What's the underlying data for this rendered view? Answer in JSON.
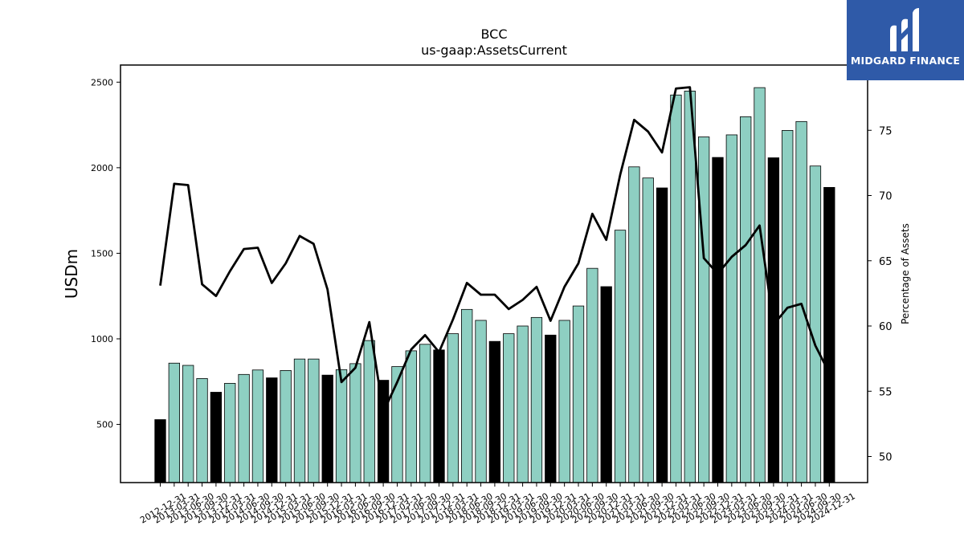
{
  "brand": {
    "name": "MIDGARD FINANCE",
    "color": "#2f5aa8"
  },
  "chart_data": {
    "type": "bar",
    "title": "BCC",
    "subtitle": "us-gaap:AssetsCurrent",
    "ylabel": "USDm",
    "y2label": "Percentage of Assets",
    "ylim": [
      160,
      2600
    ],
    "y2lim": [
      48,
      80
    ],
    "yticks": [
      500,
      1000,
      1500,
      2000,
      2500
    ],
    "y2ticks": [
      50,
      55,
      60,
      65,
      70,
      75
    ],
    "colors": {
      "quarter": "#8ecfc2",
      "year_end": "#000000",
      "line": "#000000"
    },
    "categories": [
      "2012-12-31",
      "2013-03-31",
      "2013-06-30",
      "2013-09-30",
      "2013-12-31",
      "2014-03-31",
      "2014-06-30",
      "2014-09-30",
      "2014-12-31",
      "2015-03-31",
      "2015-06-30",
      "2015-09-30",
      "2015-12-31",
      "2016-03-31",
      "2016-06-30",
      "2016-09-30",
      "2016-12-31",
      "2017-03-31",
      "2017-06-30",
      "2017-09-30",
      "2017-12-31",
      "2018-03-31",
      "2018-06-30",
      "2018-09-30",
      "2018-12-31",
      "2019-03-31",
      "2019-06-30",
      "2019-09-30",
      "2019-12-31",
      "2020-03-31",
      "2020-06-30",
      "2020-09-30",
      "2020-12-31",
      "2021-03-31",
      "2021-06-30",
      "2021-09-30",
      "2021-12-31",
      "2022-03-31",
      "2022-06-30",
      "2022-09-30",
      "2022-12-31",
      "2023-03-31",
      "2023-06-30",
      "2023-09-30",
      "2023-12-31",
      "2024-03-31",
      "2024-06-30",
      "2024-09-30",
      "2024-12-31"
    ],
    "series": [
      {
        "type": "bar",
        "values": [
          528,
          858,
          845,
          768,
          688,
          740,
          792,
          818,
          772,
          815,
          882,
          882,
          788,
          820,
          855,
          990,
          758,
          838,
          930,
          968,
          935,
          1030,
          1172,
          1108,
          985,
          1030,
          1075,
          1125,
          1022,
          1108,
          1192,
          1412,
          1305,
          1635,
          2005,
          1940,
          1882,
          2425,
          2448,
          2180,
          2060,
          2192,
          2298,
          2468,
          2058,
          2218,
          2270,
          2010,
          1885
        ]
      },
      {
        "type": "line",
        "axis": "right",
        "values": [
          63.1,
          70.9,
          70.8,
          63.2,
          62.3,
          64.2,
          65.9,
          66.0,
          63.3,
          64.8,
          66.9,
          66.3,
          62.8,
          55.7,
          56.8,
          60.3,
          53.4,
          55.7,
          58.2,
          59.3,
          58.0,
          60.5,
          63.3,
          62.4,
          62.4,
          61.3,
          62.0,
          63.0,
          60.4,
          63.0,
          64.8,
          68.6,
          66.6,
          71.6,
          75.8,
          74.9,
          73.3,
          78.2,
          78.3,
          65.2,
          64.0,
          65.3,
          66.2,
          67.7,
          60.1,
          61.4,
          61.7,
          58.5,
          56.4
        ]
      }
    ]
  }
}
